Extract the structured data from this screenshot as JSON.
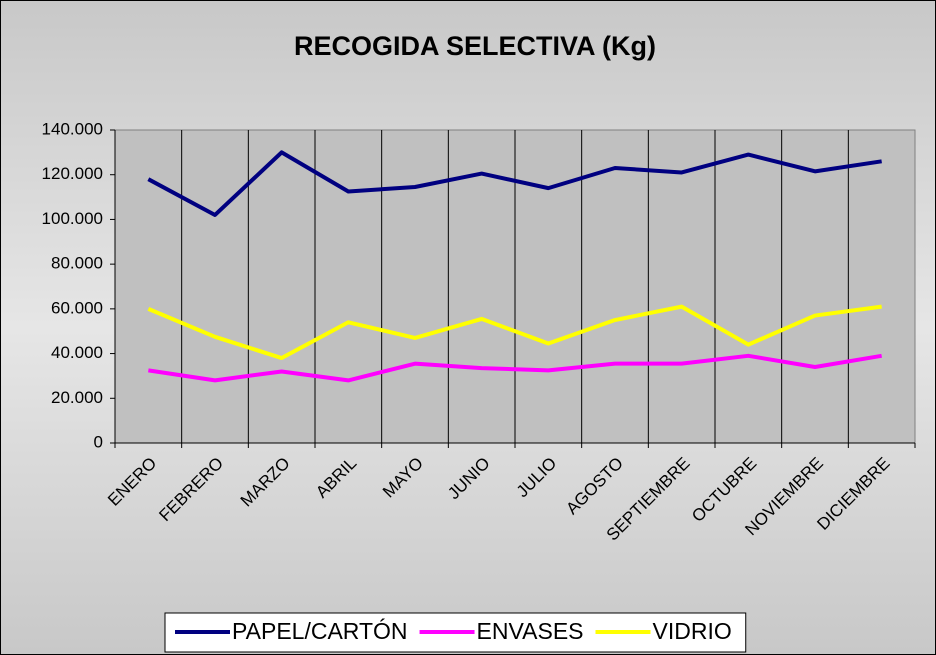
{
  "chart_data": {
    "type": "line",
    "title": "RECOGIDA SELECTIVA (Kg)",
    "categories": [
      "ENERO",
      "FEBRERO",
      "MARZO",
      "ABRIL",
      "MAYO",
      "JUNIO",
      "JULIO",
      "AGOSTO",
      "SEPTIEMBRE",
      "OCTUBRE",
      "NOVIEMBRE",
      "DICIEMBRE"
    ],
    "series": [
      {
        "name": "PAPEL/CARTÓN",
        "color": "#000080",
        "values": [
          118000,
          102000,
          130000,
          112500,
          114500,
          120500,
          114000,
          123000,
          121000,
          129000,
          121500,
          126000
        ]
      },
      {
        "name": "ENVASES",
        "color": "#ff00ff",
        "values": [
          32500,
          28000,
          32000,
          28000,
          35500,
          33500,
          32500,
          35500,
          35500,
          39000,
          34000,
          39000
        ]
      },
      {
        "name": "VIDRIO",
        "color": "#ffff00",
        "values": [
          60000,
          47500,
          38000,
          54000,
          47000,
          55500,
          44500,
          55000,
          61000,
          44000,
          57000,
          61000
        ]
      }
    ],
    "ylim": [
      0,
      140000
    ],
    "yticks": [
      0,
      {
        "value": 20000,
        "label": "20.000"
      },
      {
        "value": 40000,
        "label": "40.000"
      },
      {
        "value": 60000,
        "label": "60.000"
      },
      {
        "value": 80000,
        "label": "80.000"
      },
      {
        "value": 100000,
        "label": "100.000"
      },
      {
        "value": 120000,
        "label": "120.000"
      },
      {
        "value": 140000,
        "label": "140.000"
      }
    ],
    "legend": "bottom"
  }
}
